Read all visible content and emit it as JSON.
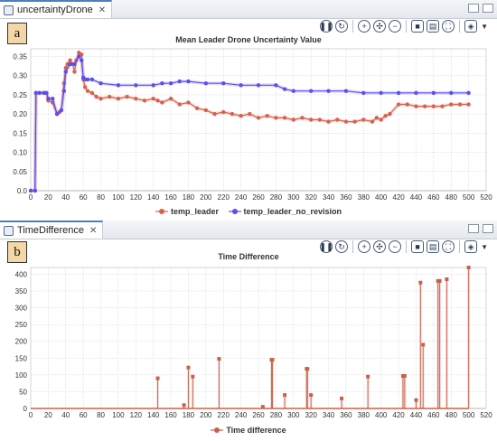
{
  "panel_a": {
    "tab_label": "uncertaintyDrone",
    "panel_label": "a"
  },
  "panel_b": {
    "tab_label": "TimeDifference",
    "panel_label": "b"
  },
  "toolbar_icons": [
    "pause-icon",
    "refresh-icon",
    "zoom-in-icon",
    "fit-icon",
    "zoom-out-icon",
    "record-icon",
    "layout-icon",
    "fullscreen-icon",
    "layers-icon",
    "dropdown-icon"
  ],
  "colors": {
    "temp_leader": "#d9614c",
    "temp_leader_no_revision": "#5b4ef2",
    "time_difference": "#c8614a",
    "grid": "#cfcfcf",
    "frame_accent": "#4a7fc1"
  },
  "chart_data": [
    {
      "type": "line",
      "title": "Mean Leader Drone Uncertainty Value",
      "xlabel": "",
      "ylabel": "",
      "xlim": [
        0,
        520
      ],
      "ylim": [
        0,
        0.37
      ],
      "x_ticks": [
        0,
        20,
        40,
        60,
        80,
        100,
        120,
        140,
        160,
        180,
        200,
        220,
        240,
        260,
        280,
        300,
        320,
        340,
        360,
        380,
        400,
        420,
        440,
        460,
        480,
        500,
        520
      ],
      "y_ticks": [
        0.0,
        0.05,
        0.1,
        0.15,
        0.2,
        0.25,
        0.3,
        0.35
      ],
      "y_tick_labels": [
        "0.0",
        "0.05",
        "0.10",
        "0.15",
        "0.20",
        "0.25",
        "0.30",
        "0.35"
      ],
      "grid": true,
      "legend_position": "bottom-center",
      "series": [
        {
          "name": "temp_leader",
          "x": [
            0,
            5,
            6,
            10,
            15,
            18,
            20,
            25,
            30,
            33,
            35,
            38,
            40,
            42,
            45,
            48,
            50,
            52,
            55,
            58,
            60,
            62,
            65,
            70,
            75,
            80,
            90,
            100,
            110,
            120,
            130,
            140,
            145,
            150,
            160,
            170,
            180,
            190,
            200,
            210,
            220,
            230,
            240,
            250,
            260,
            270,
            280,
            290,
            300,
            310,
            320,
            330,
            340,
            350,
            360,
            370,
            380,
            390,
            395,
            400,
            405,
            410,
            420,
            430,
            440,
            450,
            460,
            470,
            480,
            490,
            500
          ],
          "y": [
            0.0,
            0.0,
            0.255,
            0.255,
            0.255,
            0.255,
            0.235,
            0.23,
            0.2,
            0.205,
            0.21,
            0.28,
            0.32,
            0.33,
            0.34,
            0.33,
            0.31,
            0.34,
            0.36,
            0.355,
            0.29,
            0.27,
            0.26,
            0.255,
            0.245,
            0.24,
            0.245,
            0.24,
            0.245,
            0.24,
            0.235,
            0.24,
            0.235,
            0.23,
            0.24,
            0.225,
            0.23,
            0.215,
            0.21,
            0.2,
            0.205,
            0.2,
            0.195,
            0.2,
            0.19,
            0.195,
            0.19,
            0.19,
            0.185,
            0.19,
            0.185,
            0.185,
            0.18,
            0.185,
            0.18,
            0.18,
            0.185,
            0.18,
            0.19,
            0.185,
            0.195,
            0.2,
            0.225,
            0.225,
            0.22,
            0.22,
            0.22,
            0.22,
            0.225,
            0.225,
            0.225
          ]
        },
        {
          "name": "temp_leader_no_revision",
          "x": [
            0,
            5,
            6,
            10,
            15,
            18,
            20,
            25,
            30,
            35,
            38,
            40,
            45,
            50,
            55,
            58,
            60,
            62,
            65,
            70,
            80,
            100,
            120,
            140,
            150,
            160,
            170,
            180,
            200,
            220,
            240,
            260,
            280,
            290,
            300,
            320,
            340,
            360,
            380,
            400,
            420,
            440,
            460,
            480,
            500
          ],
          "y": [
            0.0,
            0.0,
            0.255,
            0.255,
            0.255,
            0.255,
            0.24,
            0.24,
            0.2,
            0.21,
            0.26,
            0.31,
            0.33,
            0.33,
            0.35,
            0.34,
            0.295,
            0.29,
            0.29,
            0.29,
            0.28,
            0.275,
            0.275,
            0.275,
            0.28,
            0.28,
            0.285,
            0.285,
            0.28,
            0.28,
            0.275,
            0.275,
            0.275,
            0.265,
            0.26,
            0.26,
            0.26,
            0.26,
            0.255,
            0.255,
            0.255,
            0.255,
            0.255,
            0.255,
            0.255
          ]
        }
      ]
    },
    {
      "type": "line",
      "title": "Time Difference",
      "xlabel": "",
      "ylabel": "",
      "xlim": [
        0,
        520
      ],
      "ylim": [
        0,
        420
      ],
      "x_ticks": [
        0,
        20,
        40,
        60,
        80,
        100,
        120,
        140,
        160,
        180,
        200,
        220,
        240,
        260,
        280,
        300,
        320,
        340,
        360,
        380,
        400,
        420,
        440,
        460,
        480,
        500,
        520
      ],
      "y_ticks": [
        0,
        50,
        100,
        150,
        200,
        250,
        300,
        350,
        400
      ],
      "grid": true,
      "legend_position": "bottom-center",
      "series": [
        {
          "name": "Time difference",
          "x": [
            145,
            175,
            180,
            185,
            215,
            265,
            275,
            276,
            290,
            315,
            316,
            320,
            355,
            385,
            425,
            427,
            440,
            445,
            448,
            465,
            467,
            475,
            500
          ],
          "y": [
            90,
            10,
            122,
            95,
            148,
            5,
            145,
            145,
            40,
            118,
            118,
            40,
            30,
            95,
            97,
            97,
            25,
            375,
            190,
            380,
            380,
            385,
            420
          ]
        }
      ]
    }
  ]
}
